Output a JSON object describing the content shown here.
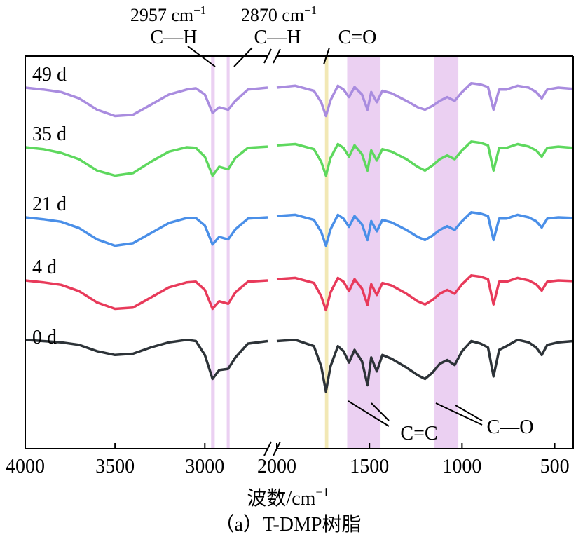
{
  "chart_data": {
    "type": "line",
    "xlabel": "波数/cm",
    "xlabel_sup": "−1",
    "caption": "（a）T-DMP树脂",
    "x_axis": {
      "reversed": true,
      "break": [
        2650,
        2000
      ],
      "segments": [
        [
          4000,
          2650
        ],
        [
          2000,
          400
        ]
      ],
      "ticks": [
        4000,
        3500,
        3000,
        2000,
        1500,
        1000,
        500
      ]
    },
    "highlight_bands": [
      {
        "from": 2965,
        "to": 2945,
        "color": "#e8c8f0"
      },
      {
        "from": 2878,
        "to": 2862,
        "color": "#e8c8f0"
      },
      {
        "from": 1740,
        "to": 1722,
        "color": "#f0e4a8"
      },
      {
        "from": 1620,
        "to": 1440,
        "color": "#e8c8f0"
      },
      {
        "from": 1150,
        "to": 1020,
        "color": "#e8c8f0"
      }
    ],
    "annotations": {
      "ch1_wn": "2957 cm",
      "ch1_sup": "−1",
      "ch1_bond": "C—H",
      "ch2_wn": "2870 cm",
      "ch2_sup": "−1",
      "ch2_bond": "C—H",
      "co_bond": "C=O",
      "cc_bond": "C=C",
      "c_o_bond": "C—O"
    },
    "series": [
      {
        "name": "49 d",
        "color": "#a98cdf",
        "points": [
          [
            4000,
            0.55
          ],
          [
            3900,
            0.58
          ],
          [
            3800,
            0.62
          ],
          [
            3700,
            0.72
          ],
          [
            3600,
            0.9
          ],
          [
            3500,
            1.0
          ],
          [
            3400,
            0.98
          ],
          [
            3300,
            0.82
          ],
          [
            3200,
            0.66
          ],
          [
            3100,
            0.58
          ],
          [
            3050,
            0.56
          ],
          [
            3000,
            0.66
          ],
          [
            2957,
            0.95
          ],
          [
            2920,
            0.86
          ],
          [
            2870,
            0.9
          ],
          [
            2830,
            0.76
          ],
          [
            2760,
            0.58
          ],
          [
            2650,
            0.55
          ],
          [
            2000,
            0.55
          ],
          [
            1900,
            0.52
          ],
          [
            1800,
            0.6
          ],
          [
            1760,
            0.78
          ],
          [
            1735,
            1.0
          ],
          [
            1710,
            0.75
          ],
          [
            1670,
            0.52
          ],
          [
            1640,
            0.58
          ],
          [
            1610,
            0.7
          ],
          [
            1580,
            0.54
          ],
          [
            1540,
            0.66
          ],
          [
            1510,
            0.9
          ],
          [
            1490,
            0.62
          ],
          [
            1460,
            0.78
          ],
          [
            1430,
            0.6
          ],
          [
            1380,
            0.64
          ],
          [
            1300,
            0.76
          ],
          [
            1240,
            0.86
          ],
          [
            1200,
            0.9
          ],
          [
            1160,
            0.84
          ],
          [
            1120,
            0.76
          ],
          [
            1080,
            0.7
          ],
          [
            1040,
            0.76
          ],
          [
            1000,
            0.62
          ],
          [
            950,
            0.48
          ],
          [
            900,
            0.5
          ],
          [
            860,
            0.54
          ],
          [
            830,
            0.9
          ],
          [
            800,
            0.58
          ],
          [
            760,
            0.58
          ],
          [
            700,
            0.52
          ],
          [
            640,
            0.55
          ],
          [
            600,
            0.62
          ],
          [
            570,
            0.72
          ],
          [
            540,
            0.58
          ],
          [
            480,
            0.55
          ],
          [
            400,
            0.57
          ]
        ]
      },
      {
        "name": "35 d",
        "color": "#5ed85e",
        "points": [
          [
            4000,
            0.55
          ],
          [
            3900,
            0.58
          ],
          [
            3800,
            0.64
          ],
          [
            3700,
            0.74
          ],
          [
            3600,
            0.92
          ],
          [
            3500,
            1.0
          ],
          [
            3400,
            0.96
          ],
          [
            3300,
            0.78
          ],
          [
            3200,
            0.62
          ],
          [
            3100,
            0.55
          ],
          [
            3050,
            0.56
          ],
          [
            3000,
            0.7
          ],
          [
            2957,
            1.0
          ],
          [
            2920,
            0.86
          ],
          [
            2870,
            0.9
          ],
          [
            2830,
            0.72
          ],
          [
            2760,
            0.56
          ],
          [
            2650,
            0.54
          ],
          [
            2000,
            0.52
          ],
          [
            1900,
            0.5
          ],
          [
            1800,
            0.58
          ],
          [
            1760,
            0.78
          ],
          [
            1735,
            1.0
          ],
          [
            1710,
            0.72
          ],
          [
            1670,
            0.5
          ],
          [
            1640,
            0.56
          ],
          [
            1610,
            0.7
          ],
          [
            1580,
            0.52
          ],
          [
            1540,
            0.66
          ],
          [
            1510,
            0.92
          ],
          [
            1490,
            0.6
          ],
          [
            1460,
            0.76
          ],
          [
            1430,
            0.58
          ],
          [
            1380,
            0.62
          ],
          [
            1300,
            0.74
          ],
          [
            1240,
            0.86
          ],
          [
            1200,
            0.92
          ],
          [
            1160,
            0.84
          ],
          [
            1120,
            0.74
          ],
          [
            1080,
            0.68
          ],
          [
            1040,
            0.74
          ],
          [
            1000,
            0.6
          ],
          [
            950,
            0.46
          ],
          [
            900,
            0.48
          ],
          [
            860,
            0.52
          ],
          [
            830,
            0.92
          ],
          [
            800,
            0.56
          ],
          [
            760,
            0.56
          ],
          [
            700,
            0.5
          ],
          [
            640,
            0.54
          ],
          [
            600,
            0.6
          ],
          [
            570,
            0.7
          ],
          [
            540,
            0.56
          ],
          [
            480,
            0.54
          ],
          [
            400,
            0.56
          ]
        ]
      },
      {
        "name": "21 d",
        "color": "#4a8fe8",
        "points": [
          [
            4000,
            0.55
          ],
          [
            3900,
            0.58
          ],
          [
            3800,
            0.62
          ],
          [
            3700,
            0.72
          ],
          [
            3600,
            0.9
          ],
          [
            3500,
            1.0
          ],
          [
            3400,
            0.96
          ],
          [
            3300,
            0.8
          ],
          [
            3200,
            0.64
          ],
          [
            3100,
            0.56
          ],
          [
            3050,
            0.56
          ],
          [
            3000,
            0.68
          ],
          [
            2957,
            0.98
          ],
          [
            2920,
            0.86
          ],
          [
            2870,
            0.9
          ],
          [
            2830,
            0.74
          ],
          [
            2760,
            0.57
          ],
          [
            2650,
            0.55
          ],
          [
            2000,
            0.53
          ],
          [
            1900,
            0.51
          ],
          [
            1800,
            0.59
          ],
          [
            1760,
            0.78
          ],
          [
            1735,
            1.0
          ],
          [
            1710,
            0.74
          ],
          [
            1670,
            0.51
          ],
          [
            1640,
            0.57
          ],
          [
            1610,
            0.7
          ],
          [
            1580,
            0.53
          ],
          [
            1540,
            0.66
          ],
          [
            1510,
            0.91
          ],
          [
            1490,
            0.61
          ],
          [
            1460,
            0.77
          ],
          [
            1430,
            0.59
          ],
          [
            1380,
            0.63
          ],
          [
            1300,
            0.75
          ],
          [
            1240,
            0.86
          ],
          [
            1200,
            0.91
          ],
          [
            1160,
            0.84
          ],
          [
            1120,
            0.75
          ],
          [
            1080,
            0.69
          ],
          [
            1040,
            0.75
          ],
          [
            1000,
            0.61
          ],
          [
            950,
            0.47
          ],
          [
            900,
            0.49
          ],
          [
            860,
            0.53
          ],
          [
            830,
            0.91
          ],
          [
            800,
            0.57
          ],
          [
            760,
            0.57
          ],
          [
            700,
            0.51
          ],
          [
            640,
            0.55
          ],
          [
            600,
            0.61
          ],
          [
            570,
            0.71
          ],
          [
            540,
            0.57
          ],
          [
            480,
            0.55
          ],
          [
            400,
            0.56
          ]
        ]
      },
      {
        "name": "4 d",
        "color": "#e83a5a",
        "points": [
          [
            4000,
            0.55
          ],
          [
            3900,
            0.58
          ],
          [
            3800,
            0.62
          ],
          [
            3700,
            0.72
          ],
          [
            3600,
            0.9
          ],
          [
            3500,
            1.0
          ],
          [
            3400,
            0.98
          ],
          [
            3300,
            0.82
          ],
          [
            3200,
            0.66
          ],
          [
            3100,
            0.58
          ],
          [
            3050,
            0.57
          ],
          [
            3000,
            0.7
          ],
          [
            2957,
            1.0
          ],
          [
            2920,
            0.88
          ],
          [
            2870,
            0.92
          ],
          [
            2830,
            0.74
          ],
          [
            2760,
            0.57
          ],
          [
            2650,
            0.55
          ],
          [
            2000,
            0.53
          ],
          [
            1900,
            0.51
          ],
          [
            1800,
            0.59
          ],
          [
            1760,
            0.8
          ],
          [
            1735,
            1.02
          ],
          [
            1710,
            0.74
          ],
          [
            1670,
            0.51
          ],
          [
            1640,
            0.57
          ],
          [
            1610,
            0.72
          ],
          [
            1580,
            0.53
          ],
          [
            1540,
            0.68
          ],
          [
            1510,
            0.94
          ],
          [
            1490,
            0.61
          ],
          [
            1460,
            0.78
          ],
          [
            1430,
            0.59
          ],
          [
            1380,
            0.63
          ],
          [
            1300,
            0.76
          ],
          [
            1240,
            0.88
          ],
          [
            1200,
            0.93
          ],
          [
            1160,
            0.86
          ],
          [
            1120,
            0.76
          ],
          [
            1080,
            0.7
          ],
          [
            1040,
            0.76
          ],
          [
            1000,
            0.61
          ],
          [
            950,
            0.47
          ],
          [
            900,
            0.49
          ],
          [
            860,
            0.53
          ],
          [
            830,
            0.93
          ],
          [
            800,
            0.57
          ],
          [
            760,
            0.57
          ],
          [
            700,
            0.51
          ],
          [
            640,
            0.55
          ],
          [
            600,
            0.61
          ],
          [
            570,
            0.71
          ],
          [
            540,
            0.57
          ],
          [
            480,
            0.55
          ],
          [
            400,
            0.56
          ]
        ]
      },
      {
        "name": "0 d",
        "color": "#2d3338",
        "points": [
          [
            4000,
            0.38
          ],
          [
            3900,
            0.4
          ],
          [
            3800,
            0.42
          ],
          [
            3700,
            0.46
          ],
          [
            3600,
            0.56
          ],
          [
            3500,
            0.62
          ],
          [
            3400,
            0.6
          ],
          [
            3300,
            0.5
          ],
          [
            3200,
            0.42
          ],
          [
            3100,
            0.38
          ],
          [
            3050,
            0.4
          ],
          [
            3000,
            0.62
          ],
          [
            2957,
            1.0
          ],
          [
            2920,
            0.86
          ],
          [
            2870,
            0.84
          ],
          [
            2830,
            0.66
          ],
          [
            2760,
            0.44
          ],
          [
            2650,
            0.4
          ],
          [
            2000,
            0.4
          ],
          [
            1900,
            0.38
          ],
          [
            1800,
            0.48
          ],
          [
            1760,
            0.8
          ],
          [
            1735,
            1.2
          ],
          [
            1710,
            0.8
          ],
          [
            1670,
            0.48
          ],
          [
            1640,
            0.56
          ],
          [
            1610,
            0.74
          ],
          [
            1580,
            0.54
          ],
          [
            1540,
            0.72
          ],
          [
            1510,
            1.1
          ],
          [
            1490,
            0.66
          ],
          [
            1460,
            0.88
          ],
          [
            1430,
            0.62
          ],
          [
            1380,
            0.68
          ],
          [
            1300,
            0.82
          ],
          [
            1240,
            0.94
          ],
          [
            1200,
            1.0
          ],
          [
            1160,
            0.9
          ],
          [
            1120,
            0.76
          ],
          [
            1080,
            0.7
          ],
          [
            1040,
            0.78
          ],
          [
            1000,
            0.56
          ],
          [
            950,
            0.4
          ],
          [
            900,
            0.44
          ],
          [
            860,
            0.5
          ],
          [
            830,
            0.96
          ],
          [
            800,
            0.54
          ],
          [
            760,
            0.48
          ],
          [
            700,
            0.38
          ],
          [
            640,
            0.42
          ],
          [
            600,
            0.5
          ],
          [
            570,
            0.62
          ],
          [
            540,
            0.46
          ],
          [
            480,
            0.42
          ],
          [
            400,
            0.4
          ]
        ]
      }
    ]
  }
}
